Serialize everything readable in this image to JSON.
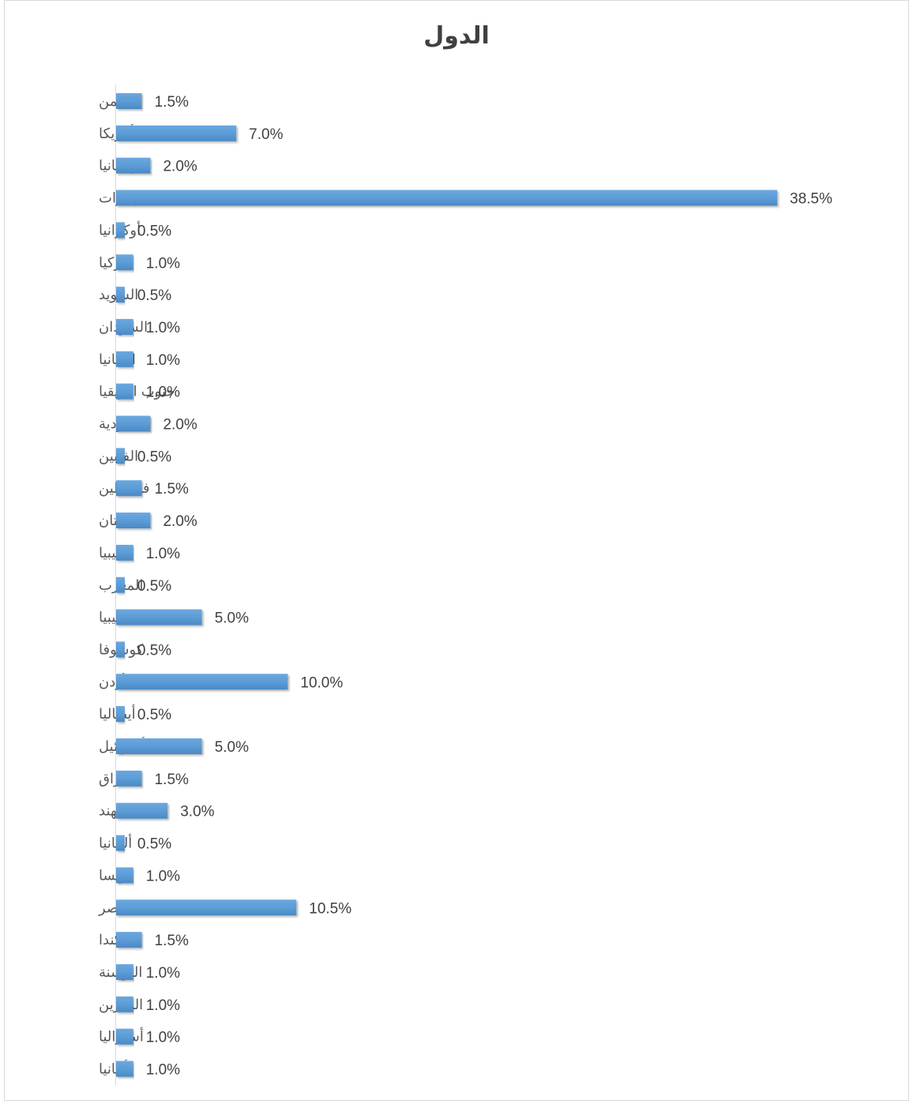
{
  "chart_data": {
    "type": "bar",
    "orientation": "horizontal",
    "title": "الدول",
    "xlabel": "",
    "ylabel": "",
    "value_format": "percent_1dp",
    "xlim": [
      0,
      38.5
    ],
    "grid": false,
    "legend": "none",
    "bar_color": "#5b9bd5",
    "categories": [
      "اليمن",
      "أمريكا",
      "بريطانيا",
      "الإمارات",
      "أوكرانيا",
      "تركيا",
      "السويد",
      "السودان",
      "اسبانيا",
      "جنوب افريقيا",
      "السعودية",
      "الفلبين",
      "فلسطين",
      "باكستان",
      "ناميبيا",
      "المغرب",
      "ليبيا",
      "كوسوفا",
      "الأردن",
      "أيطاليا",
      "أسرائيل",
      "العراق",
      "الهند",
      "ألمانيا",
      "فرنسا",
      "مصر",
      "كندا",
      "البوسنة",
      "البحرين",
      "أستراليا",
      "ألبانيا"
    ],
    "values": [
      1.5,
      7.0,
      2.0,
      38.5,
      0.5,
      1.0,
      0.5,
      1.0,
      1.0,
      1.0,
      2.0,
      0.5,
      1.5,
      2.0,
      1.0,
      0.5,
      5.0,
      0.5,
      10.0,
      0.5,
      5.0,
      1.5,
      3.0,
      0.5,
      1.0,
      10.5,
      1.5,
      1.0,
      1.0,
      1.0,
      1.0
    ],
    "labels": [
      "1.5%",
      "7.0%",
      "2.0%",
      "38.5%",
      "0.5%",
      "1.0%",
      "0.5%",
      "1.0%",
      "1.0%",
      "1.0%",
      "2.0%",
      "0.5%",
      "1.5%",
      "2.0%",
      "1.0%",
      "0.5%",
      "5.0%",
      "0.5%",
      "10.0%",
      "0.5%",
      "5.0%",
      "1.5%",
      "3.0%",
      "0.5%",
      "1.0%",
      "10.5%",
      "1.5%",
      "1.0%",
      "1.0%",
      "1.0%",
      "1.0%"
    ]
  }
}
